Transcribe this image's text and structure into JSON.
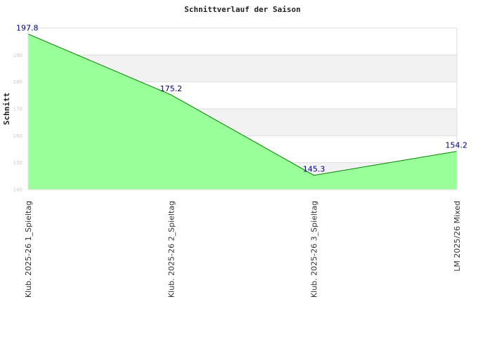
{
  "chart_data": {
    "type": "area",
    "title": "Schnittverlauf der Saison",
    "xlabel": "",
    "ylabel": "Schnitt",
    "categories": [
      "Klub. 2025-26  1_Spieltag",
      "Klub. 2025-26  2_Spieltag",
      "Klub. 2025-26  3_Spieltag",
      "LM 2025/26 Mixed"
    ],
    "values": [
      197.8,
      175.2,
      145.3,
      154.2
    ],
    "data_labels": [
      "197.8",
      "175.2",
      "145.3",
      "154.2"
    ],
    "y_ticks": [
      140,
      150,
      160,
      170,
      180,
      190
    ],
    "ylim": [
      140,
      200
    ],
    "grid": true,
    "legend": "none",
    "colors": {
      "area_fill": "#99ff99",
      "line": "#008000",
      "band": "#f2f2f2",
      "grid": "#dddddd",
      "data_label": "#000080"
    }
  }
}
